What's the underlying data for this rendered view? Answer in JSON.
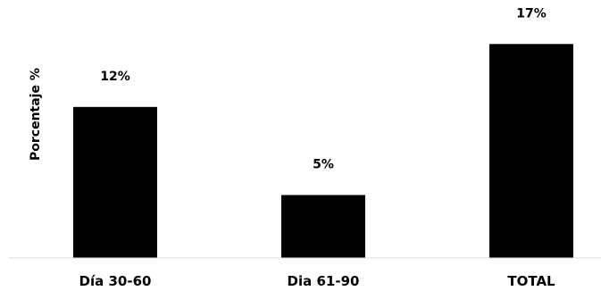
{
  "chart_data": {
    "type": "bar",
    "categories": [
      "Día 30-60",
      "Dia 61-90",
      "TOTAL"
    ],
    "values": [
      12,
      5,
      17
    ],
    "data_labels": [
      "12%",
      "5%",
      "17%"
    ],
    "ylabel": "Porcentaje %",
    "ylim": [
      0,
      20
    ],
    "bar_color": "#000000",
    "grid": false,
    "legend": "none"
  }
}
